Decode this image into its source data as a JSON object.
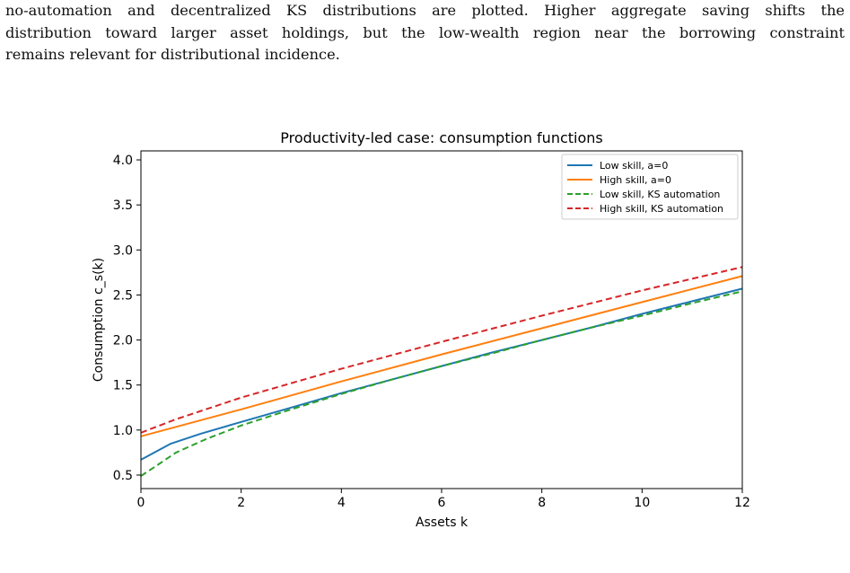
{
  "paragraph": {
    "line1": "no-automation and decentralized KS distributions are plotted. Higher aggregate saving shifts the",
    "line2": "distribution toward larger asset holdings, but the low-wealth region near the borrowing constraint",
    "line3": "remains relevant for distributional incidence."
  },
  "chart_data": {
    "type": "line",
    "title": "Productivity-led case: consumption functions",
    "xlabel": "Assets k",
    "ylabel": "Consumption c_s(k)",
    "xlim": [
      0,
      12
    ],
    "ylim": [
      0.35,
      4.1
    ],
    "xticks": [
      0,
      2,
      4,
      6,
      8,
      10,
      12
    ],
    "yticks": [
      0.5,
      1.0,
      1.5,
      2.0,
      2.5,
      3.0,
      3.5,
      4.0
    ],
    "xtick_labels": [
      "0",
      "2",
      "4",
      "6",
      "8",
      "10",
      "12"
    ],
    "ytick_labels": [
      "0.5",
      "1.0",
      "1.5",
      "2.0",
      "2.5",
      "3.0",
      "3.5",
      "4.0"
    ],
    "grid": false,
    "legend_position": "top-right",
    "series": [
      {
        "name": "Low skill, a=0",
        "color": "#1f77b4",
        "dash": "solid",
        "x": [
          0,
          0.6,
          1.2,
          2,
          3,
          4,
          5,
          6,
          7,
          8,
          9,
          10,
          11,
          12
        ],
        "y": [
          0.67,
          0.85,
          0.96,
          1.09,
          1.25,
          1.41,
          1.56,
          1.71,
          1.86,
          2.0,
          2.14,
          2.29,
          2.43,
          2.57
        ]
      },
      {
        "name": "High skill, a=0",
        "color": "#ff7f0e",
        "dash": "solid",
        "x": [
          0,
          2,
          4,
          6,
          8,
          10,
          12
        ],
        "y": [
          0.93,
          1.23,
          1.54,
          1.84,
          2.13,
          2.42,
          2.71
        ]
      },
      {
        "name": "Low skill, KS automation",
        "color": "#2ca02c",
        "dash": "dashed",
        "x": [
          0,
          0.3,
          0.7,
          1.3,
          2,
          3,
          4,
          5,
          6,
          7,
          8,
          9,
          10,
          11,
          12
        ],
        "y": [
          0.49,
          0.6,
          0.75,
          0.9,
          1.05,
          1.23,
          1.4,
          1.56,
          1.71,
          1.85,
          2.0,
          2.14,
          2.27,
          2.41,
          2.54
        ]
      },
      {
        "name": "High skill, KS automation",
        "color": "#d62728",
        "dash": "dashed",
        "x": [
          0,
          0.7,
          2,
          4,
          6,
          8,
          10,
          12
        ],
        "y": [
          0.97,
          1.12,
          1.36,
          1.68,
          1.98,
          2.27,
          2.55,
          2.81
        ]
      }
    ]
  }
}
